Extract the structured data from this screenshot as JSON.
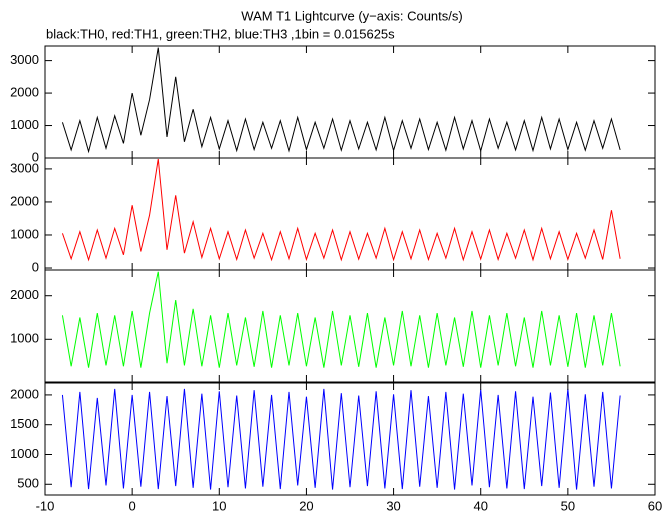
{
  "chart_data": [
    {
      "type": "line",
      "title": "WAM T1 Lightcurve (y−axis: Counts/s)",
      "subtitle": "black:TH0, red:TH1, green:TH2, blue:TH3 ,1bin = 0.015625s",
      "x": [
        -8,
        -7,
        -6,
        -5,
        -4,
        -3,
        -2,
        -1,
        0,
        1,
        2,
        3,
        4,
        5,
        6,
        7,
        8,
        9,
        10,
        11,
        12,
        13,
        14,
        15,
        16,
        17,
        18,
        19,
        20,
        21,
        22,
        23,
        24,
        25,
        26,
        27,
        28,
        29,
        30,
        31,
        32,
        33,
        34,
        35,
        36,
        37,
        38,
        39,
        40,
        41,
        42,
        43,
        44,
        45,
        46,
        47,
        48,
        49,
        50,
        51,
        52,
        53,
        54,
        55,
        56
      ],
      "series": [
        {
          "name": "TH0",
          "color": "#000000",
          "values": [
            1100,
            250,
            1150,
            200,
            1250,
            300,
            1300,
            450,
            2000,
            700,
            1800,
            3400,
            650,
            2500,
            500,
            1500,
            350,
            1250,
            280,
            1150,
            230,
            1200,
            260,
            1100,
            300,
            1150,
            220,
            1250,
            260,
            1100,
            300,
            1200,
            240,
            1150,
            280,
            1100,
            250,
            1250,
            230,
            1150,
            300,
            1200,
            260,
            1100,
            240,
            1250,
            280,
            1150,
            220,
            1200,
            300,
            1100,
            250,
            1150,
            230,
            1250,
            280,
            1200,
            260,
            1100,
            240,
            1150,
            300,
            1200,
            250
          ]
        }
      ],
      "xlim": [
        -10,
        60
      ],
      "xticks": [
        -10,
        0,
        10,
        20,
        30,
        40,
        50,
        60
      ],
      "ylim": [
        0,
        3450
      ],
      "yticks": [
        0,
        1000,
        2000,
        3000
      ]
    },
    {
      "type": "line",
      "x": [
        -8,
        -7,
        -6,
        -5,
        -4,
        -3,
        -2,
        -1,
        0,
        1,
        2,
        3,
        4,
        5,
        6,
        7,
        8,
        9,
        10,
        11,
        12,
        13,
        14,
        15,
        16,
        17,
        18,
        19,
        20,
        21,
        22,
        23,
        24,
        25,
        26,
        27,
        28,
        29,
        30,
        31,
        32,
        33,
        34,
        35,
        36,
        37,
        38,
        39,
        40,
        41,
        42,
        43,
        44,
        45,
        46,
        47,
        48,
        49,
        50,
        51,
        52,
        53,
        54,
        55,
        56
      ],
      "series": [
        {
          "name": "TH1",
          "color": "#ff0000",
          "values": [
            1050,
            280,
            1100,
            250,
            1150,
            300,
            1200,
            400,
            1900,
            500,
            1600,
            3300,
            550,
            2200,
            450,
            1400,
            320,
            1200,
            280,
            1100,
            260,
            1150,
            300,
            1050,
            250,
            1100,
            280,
            1200,
            260,
            1050,
            300,
            1150,
            250,
            1100,
            270,
            1050,
            300,
            1200,
            250,
            1100,
            280,
            1150,
            260,
            1050,
            300,
            1200,
            250,
            1100,
            270,
            1150,
            260,
            1050,
            300,
            1150,
            250,
            1200,
            280,
            1100,
            260,
            1050,
            300,
            1150,
            260,
            1750,
            280
          ]
        }
      ],
      "xlim": [
        -10,
        60
      ],
      "xticks": [
        -10,
        0,
        10,
        20,
        30,
        40,
        50,
        60
      ],
      "ylim": [
        -60,
        3330
      ],
      "yticks": [
        0,
        1000,
        2000,
        3000
      ]
    },
    {
      "type": "line",
      "x": [
        -8,
        -7,
        -6,
        -5,
        -4,
        -3,
        -2,
        -1,
        0,
        1,
        2,
        3,
        4,
        5,
        6,
        7,
        8,
        9,
        10,
        11,
        12,
        13,
        14,
        15,
        16,
        17,
        18,
        19,
        20,
        21,
        22,
        23,
        24,
        25,
        26,
        27,
        28,
        29,
        30,
        31,
        32,
        33,
        34,
        35,
        36,
        37,
        38,
        39,
        40,
        41,
        42,
        43,
        44,
        45,
        46,
        47,
        48,
        49,
        50,
        51,
        52,
        53,
        54,
        55,
        56
      ],
      "series": [
        {
          "name": "TH2",
          "color": "#00ff00",
          "values": [
            1550,
            380,
            1500,
            350,
            1600,
            400,
            1550,
            380,
            1650,
            350,
            1600,
            2550,
            450,
            1900,
            400,
            1700,
            380,
            1550,
            350,
            1600,
            400,
            1500,
            370,
            1650,
            350,
            1550,
            400,
            1600,
            380,
            1500,
            350,
            1650,
            400,
            1550,
            370,
            1600,
            350,
            1500,
            400,
            1650,
            380,
            1550,
            350,
            1600,
            400,
            1500,
            370,
            1650,
            350,
            1550,
            400,
            1600,
            380,
            1500,
            350,
            1650,
            400,
            1550,
            370,
            1600,
            350,
            1550,
            400,
            1600,
            380
          ]
        }
      ],
      "xlim": [
        -10,
        60
      ],
      "xticks": [
        -10,
        0,
        10,
        20,
        30,
        40,
        50,
        60
      ],
      "ylim": [
        20,
        2590
      ],
      "yticks": [
        1000,
        2000
      ]
    },
    {
      "type": "line",
      "x": [
        -8,
        -7,
        -6,
        -5,
        -4,
        -3,
        -2,
        -1,
        0,
        1,
        2,
        3,
        4,
        5,
        6,
        7,
        8,
        9,
        10,
        11,
        12,
        13,
        14,
        15,
        16,
        17,
        18,
        19,
        20,
        21,
        22,
        23,
        24,
        25,
        26,
        27,
        28,
        29,
        30,
        31,
        32,
        33,
        34,
        35,
        36,
        37,
        38,
        39,
        40,
        41,
        42,
        43,
        44,
        45,
        46,
        47,
        48,
        49,
        50,
        51,
        52,
        53,
        54,
        55,
        56
      ],
      "series": [
        {
          "name": "TH3",
          "color": "#0000ff",
          "values": [
            2000,
            450,
            2050,
            420,
            1950,
            480,
            2100,
            430,
            2000,
            460,
            2050,
            420,
            1980,
            470,
            2100,
            440,
            2020,
            410,
            2060,
            450,
            1990,
            430,
            2080,
            460,
            2000,
            420,
            2050,
            480,
            1970,
            440,
            2100,
            410,
            2030,
            450,
            1990,
            470,
            2060,
            430,
            2010,
            420,
            2080,
            460,
            1980,
            440,
            2050,
            410,
            2020,
            480,
            2090,
            450,
            2000,
            430,
            2060,
            420,
            1970,
            470,
            2040,
            440,
            2100,
            410,
            2010,
            460,
            2050,
            430,
            1990
          ]
        }
      ],
      "xlim": [
        -10,
        60
      ],
      "xticks": [
        -10,
        0,
        10,
        20,
        30,
        40,
        50,
        60
      ],
      "ylim": [
        320,
        2200
      ],
      "yticks": [
        500,
        1000,
        1500,
        2000
      ]
    }
  ]
}
